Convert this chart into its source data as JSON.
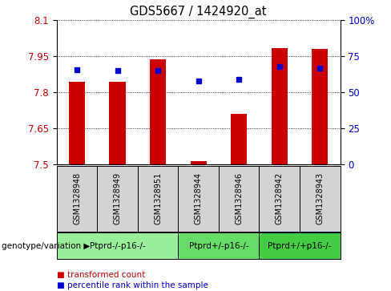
{
  "title": "GDS5667 / 1424920_at",
  "samples": [
    "GSM1328948",
    "GSM1328949",
    "GSM1328951",
    "GSM1328944",
    "GSM1328946",
    "GSM1328942",
    "GSM1328943"
  ],
  "bar_values": [
    7.845,
    7.845,
    7.938,
    7.515,
    7.71,
    7.985,
    7.98
  ],
  "percentile_values": [
    66,
    65,
    65,
    58,
    59,
    68,
    67
  ],
  "ylim_left": [
    7.5,
    8.1
  ],
  "ylim_right": [
    0,
    100
  ],
  "yticks_left": [
    7.5,
    7.65,
    7.8,
    7.95,
    8.1
  ],
  "yticks_right": [
    0,
    25,
    50,
    75,
    100
  ],
  "bar_color": "#cc0000",
  "dot_color": "#0000cc",
  "groups": [
    {
      "label": "Ptprd-/-p16-/-",
      "indices": [
        0,
        1,
        2
      ],
      "color": "#99ee99"
    },
    {
      "label": "Ptprd+/-p16-/-",
      "indices": [
        3,
        4
      ],
      "color": "#66dd66"
    },
    {
      "label": "Ptprd+/+p16-/-",
      "indices": [
        5,
        6
      ],
      "color": "#44cc44"
    }
  ],
  "legend_items": [
    "transformed count",
    "percentile rank within the sample"
  ],
  "legend_colors": [
    "#cc0000",
    "#0000cc"
  ],
  "genotype_label": "genotype/variation",
  "background_color": "#ffffff",
  "plot_bg_color": "#ffffff",
  "tick_label_color_left": "#cc0000",
  "tick_label_color_right": "#0000cc",
  "bar_bottom": 7.5,
  "sample_box_color": "#d3d3d3"
}
